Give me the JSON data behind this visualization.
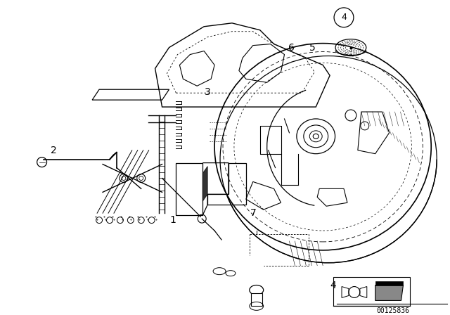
{
  "background_color": "#ffffff",
  "part_number": "00125836",
  "line_color": "#000000",
  "label_fontsize": 10,
  "circle_label_fontsize": 9
}
